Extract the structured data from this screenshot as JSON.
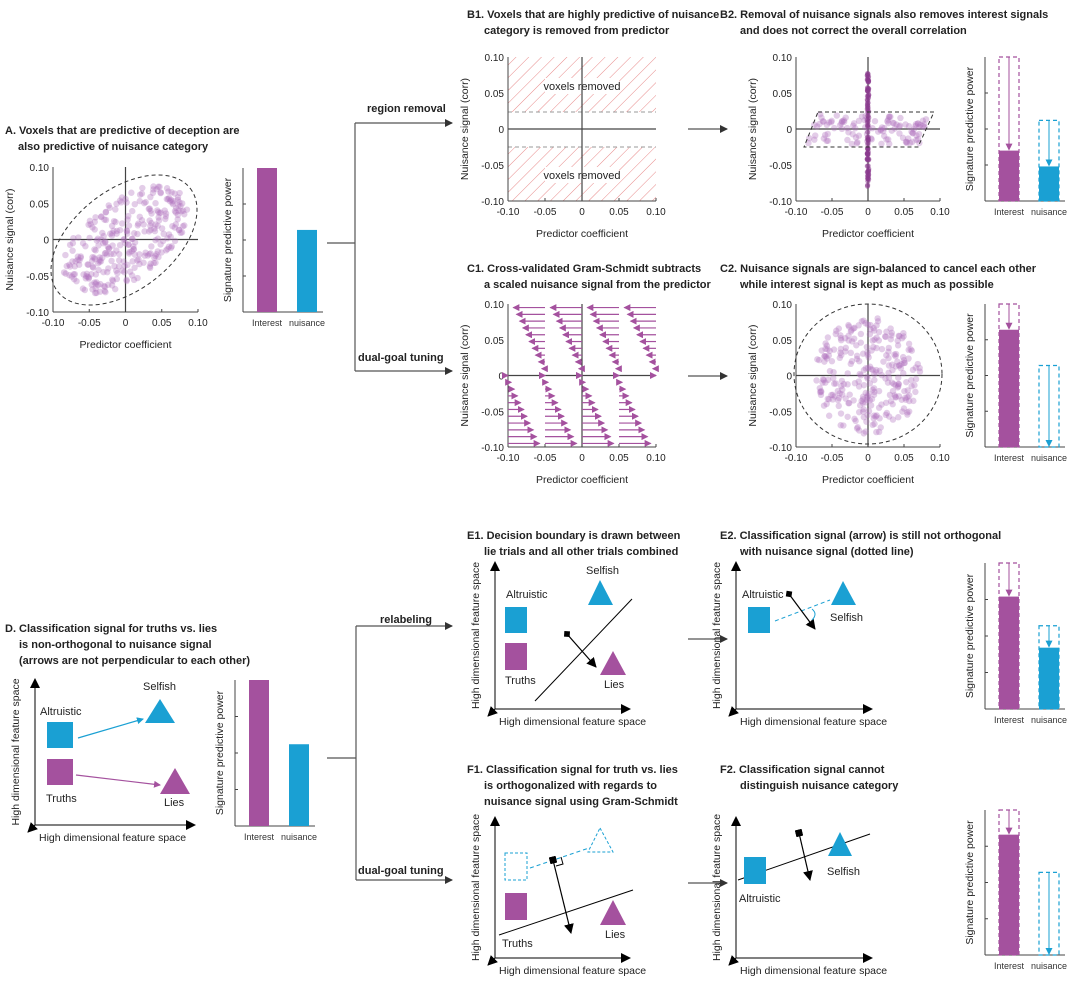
{
  "colors": {
    "interest": "#a4519e",
    "nuisance": "#1aa0d3",
    "scatter": "#b070bc",
    "hatch": "#e88a8a",
    "axis": "#333333"
  },
  "common": {
    "x_axis_label": "Predictor coefficient",
    "y_axis_label": "Nuisance signal (corr)",
    "bar_y_label": "Signature predictive power",
    "bar_categories": [
      "Interest",
      "nuisance"
    ],
    "ticks": [
      "-0.10",
      "-0.05",
      "0",
      "0.05",
      "0.10"
    ],
    "feature_axis_label": "High dimensional feature space"
  },
  "connectors": {
    "region_removal": "region removal",
    "dual_goal_tuning": "dual-goal tuning",
    "relabeling": "relabeling",
    "dual_goal_tuning_2": "dual-goal tuning"
  },
  "panels": {
    "A": {
      "title": [
        "A. Voxels that are predictive of deception are",
        "also predictive of nuisance category"
      ],
      "bars": {
        "interest": 1.0,
        "nuisance": 0.57
      }
    },
    "B1": {
      "title": [
        "B1. Voxels that are highly predictive of nuisance",
        "category is removed from predictor"
      ],
      "region_label": "voxels removed",
      "removed_threshold": 0.025
    },
    "B2": {
      "title": [
        "B2. Removal of nuisance signals also removes interest signals",
        "and does not correct the overall correlation"
      ],
      "bars": {
        "interest_before": 1.0,
        "interest_after": 0.35,
        "nuisance_before": 0.56,
        "nuisance_after": 0.24
      }
    },
    "C1": {
      "title": [
        "C1. Cross-validated Gram-Schmidt subtracts",
        "a scaled nuisance signal from the predictor"
      ]
    },
    "C2": {
      "title": [
        "C2. Nuisance signals are sign-balanced to cancel each other",
        "while interest signal is kept as much as possible"
      ],
      "bars": {
        "interest_before": 1.0,
        "interest_after": 0.82,
        "nuisance_before": 0.57,
        "nuisance_after": 0.0
      }
    },
    "D": {
      "title": [
        "D. Classification signal for truths vs. lies",
        "is non-orthogonal to nuisance signal",
        "(arrows are not perpendicular to each other)"
      ],
      "labels": {
        "altruistic": "Altruistic",
        "selfish": "Selfish",
        "truths": "Truths",
        "lies": "Lies"
      },
      "bars": {
        "interest": 1.0,
        "nuisance": 0.56
      }
    },
    "E1": {
      "title": [
        "E1. Decision boundary is drawn between",
        "lie trials and all other trials combined"
      ],
      "labels": {
        "altruistic": "Altruistic",
        "selfish": "Selfish",
        "truths": "Truths",
        "lies": "Lies"
      }
    },
    "E2": {
      "title": [
        "E2. Classification signal (arrow) is still not orthogonal",
        "with nuisance signal (dotted line)"
      ],
      "labels": {
        "altruistic": "Altruistic",
        "selfish": "Selfish"
      },
      "bars": {
        "interest_before": 1.0,
        "interest_after": 0.77,
        "nuisance_before": 0.57,
        "nuisance_after": 0.42
      }
    },
    "F1": {
      "title": [
        "F1. Classification signal for truth vs. lies",
        "is orthogonalized with regards to",
        "nuisance signal using Gram-Schmidt"
      ],
      "labels": {
        "truths": "Truths",
        "lies": "Lies"
      }
    },
    "F2": {
      "title": [
        "F2. Classification signal cannot",
        "distinguish nuisance category"
      ],
      "labels": {
        "altruistic": "Altruistic",
        "selfish": "Selfish"
      },
      "bars": {
        "interest_before": 1.0,
        "interest_after": 0.83,
        "nuisance_before": 0.57,
        "nuisance_after": 0.0
      }
    }
  }
}
